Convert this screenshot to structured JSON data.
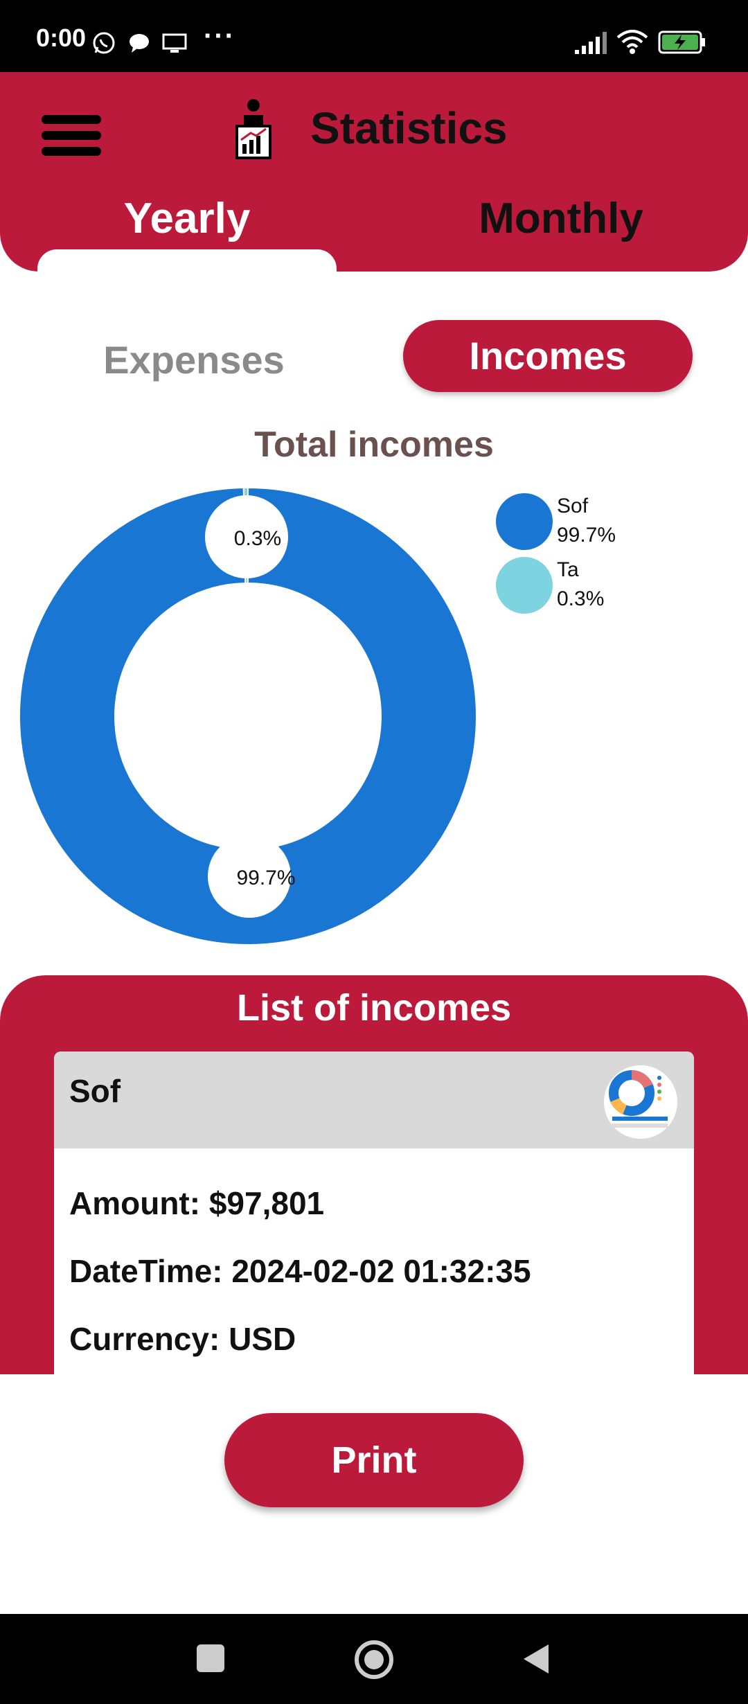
{
  "status_bar": {
    "time": "0:00",
    "more": "···"
  },
  "header": {
    "title": "Statistics"
  },
  "tabs": [
    {
      "label": "Yearly",
      "selected": true
    },
    {
      "label": "Monthly",
      "selected": false
    }
  ],
  "toggle": {
    "expenses_label": "Expenses",
    "incomes_label": "Incomes",
    "selected": "Incomes"
  },
  "chart_data": {
    "type": "pie",
    "title": "Total incomes",
    "categories": [
      "Sof",
      "Ta"
    ],
    "values": [
      99.7,
      0.3
    ],
    "labels": [
      "99.7%",
      "0.3%"
    ],
    "colors": [
      "#1976d2",
      "#7dd3df"
    ],
    "legend": "top-right"
  },
  "list": {
    "title": "List of incomes",
    "card": {
      "name": "Sof",
      "amount": "Amount: $97,801",
      "datetime": "DateTime: 2024-02-02 01:32:35",
      "currency": "Currency: USD"
    }
  },
  "actions": {
    "print_label": "Print"
  },
  "colors": {
    "accent": "#bc1a3b",
    "chart_primary": "#1976d2",
    "chart_secondary": "#7dd3df"
  }
}
